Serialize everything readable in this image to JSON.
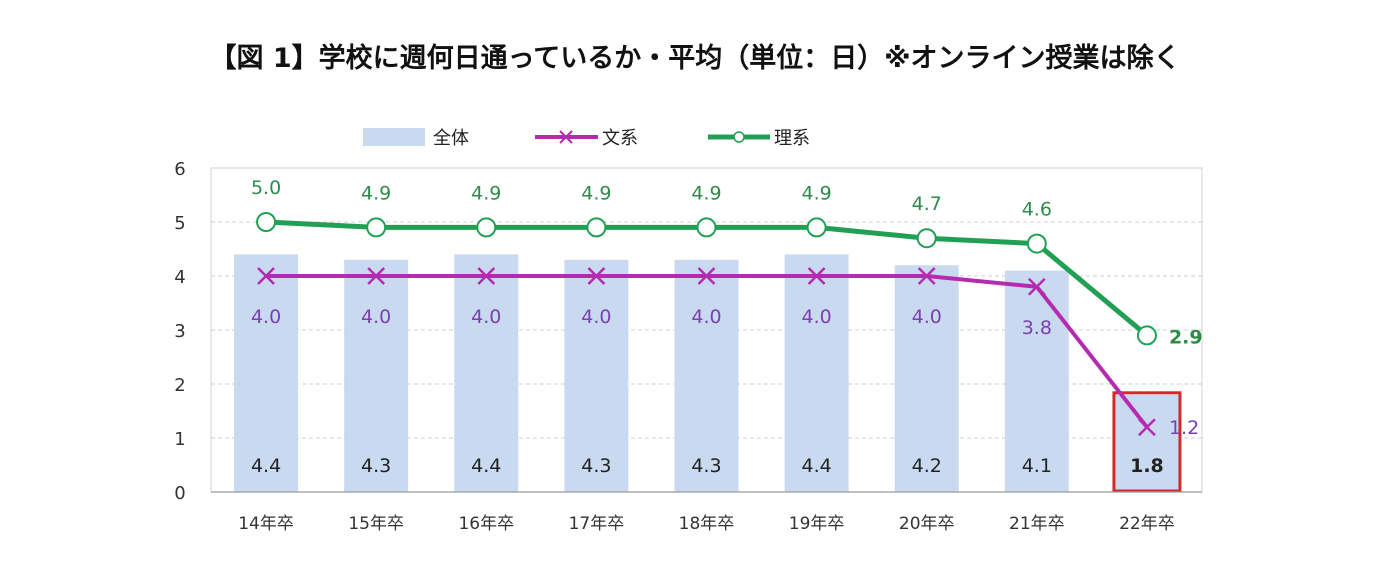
{
  "title": "【図 1】学校に週何日通っているか・平均（単位：日）※オンライン授業は除く",
  "colors": {
    "bar": "#c9daf0",
    "bun": "#b52bb0",
    "ri": "#21a055",
    "highlight": "#d12a2a"
  },
  "chart_data": {
    "type": "bar",
    "categories": [
      "14年卒",
      "15年卒",
      "16年卒",
      "17年卒",
      "18年卒",
      "19年卒",
      "20年卒",
      "21年卒",
      "22年卒"
    ],
    "ylim": [
      0,
      6
    ],
    "yticks": [
      "0",
      "1",
      "2",
      "3",
      "4",
      "5",
      "6"
    ],
    "grid": "horizontal-dashed",
    "legend_position": "top",
    "series": [
      {
        "name": "全体",
        "type": "bar",
        "values": [
          4.4,
          4.3,
          4.4,
          4.3,
          4.3,
          4.4,
          4.2,
          4.1,
          1.8
        ],
        "labels": [
          "4.4",
          "4.3",
          "4.4",
          "4.3",
          "4.3",
          "4.4",
          "4.2",
          "4.1",
          "1.8"
        ]
      },
      {
        "name": "文系",
        "type": "line",
        "marker": "x",
        "values": [
          4.0,
          4.0,
          4.0,
          4.0,
          4.0,
          4.0,
          4.0,
          3.8,
          1.2
        ],
        "labels": [
          "4.0",
          "4.0",
          "4.0",
          "4.0",
          "4.0",
          "4.0",
          "4.0",
          "3.8",
          "1.2"
        ]
      },
      {
        "name": "理系",
        "type": "line",
        "marker": "circle",
        "values": [
          5.0,
          4.9,
          4.9,
          4.9,
          4.9,
          4.9,
          4.7,
          4.6,
          2.9
        ],
        "labels": [
          "5.0",
          "4.9",
          "4.9",
          "4.9",
          "4.9",
          "4.9",
          "4.7",
          "4.6",
          "2.9"
        ]
      }
    ],
    "highlight_category": "22年卒"
  }
}
